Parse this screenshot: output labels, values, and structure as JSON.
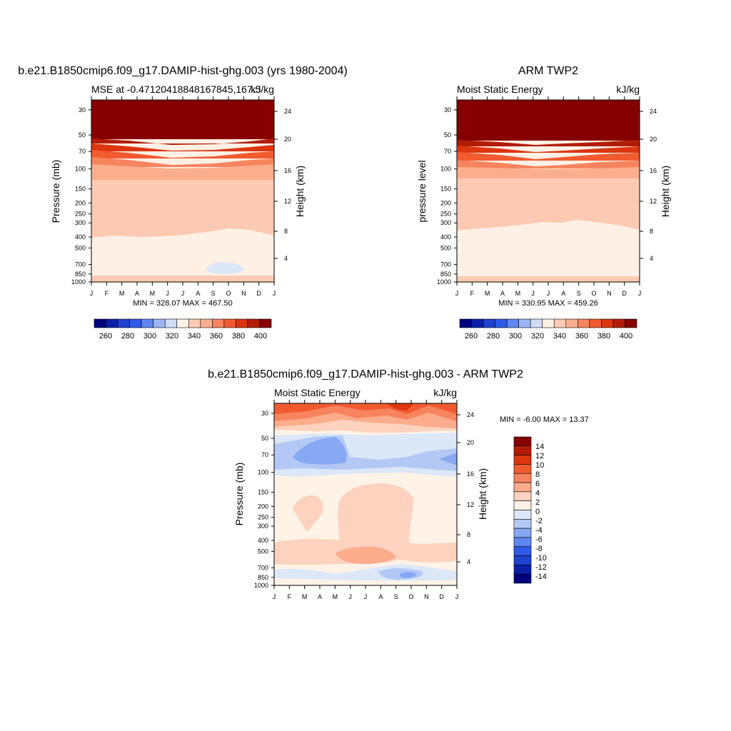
{
  "months": [
    "J",
    "F",
    "M",
    "A",
    "M",
    "J",
    "J",
    "A",
    "S",
    "O",
    "N",
    "D",
    "J"
  ],
  "pressure_ticks": [
    30,
    50,
    70,
    100,
    150,
    200,
    250,
    300,
    400,
    500,
    700,
    850,
    1000
  ],
  "colors": {
    "mse_levels": [
      "#00007f",
      "#0a1fa8",
      "#1f41cf",
      "#2d5ae6",
      "#5e87f0",
      "#9db5f5",
      "#cfdcf7",
      "#fef0e4",
      "#fccab3",
      "#fbae8e",
      "#f7845e",
      "#f25a2f",
      "#dc3510",
      "#b21c06",
      "#870000"
    ],
    "diff_levels": [
      "#00007f",
      "#0a1fa8",
      "#1f41cf",
      "#2d5ae6",
      "#5e87f0",
      "#87a8f3",
      "#b4c8f6",
      "#dce7f7",
      "#fff2e6",
      "#fdd2be",
      "#fbac8a",
      "#f7845e",
      "#f25a2f",
      "#dc3510",
      "#b21c06",
      "#870000"
    ]
  },
  "panel_model": {
    "title": "b.e21.B1850cmip6.f09_g17.DAMIP-hist-ghg.003 (yrs 1980-2004)",
    "left_string": "MSE at -0.47120418848167845,167.5",
    "right_string": "kJ/kg",
    "ylabel": "Pressure (mb)",
    "ylabel_right": "Height (km)",
    "height_ticks": [
      "24",
      "20",
      "16",
      "12",
      "8",
      "4"
    ],
    "stats": "MIN = 328.07 MAX = 467.50",
    "colorbar_labels": [
      "260",
      "280",
      "300",
      "320",
      "340",
      "360",
      "380",
      "400"
    ]
  },
  "panel_obs": {
    "title": "ARM TWP2",
    "left_string": "Moist Static Energy",
    "right_string": "kJ/kg",
    "ylabel": "pressure level",
    "ylabel_right": "Height (km)",
    "height_ticks": [
      "24",
      "20",
      "16",
      "12",
      "8",
      "4"
    ],
    "stats": "MIN = 330.95 MAX = 459.26",
    "colorbar_labels": [
      "260",
      "280",
      "300",
      "320",
      "340",
      "360",
      "380",
      "400"
    ]
  },
  "panel_diff": {
    "title": "b.e21.B1850cmip6.f09_g17.DAMIP-hist-ghg.003 - ARM TWP2",
    "left_string": "Moist Static Energy",
    "right_string": "kJ/kg",
    "ylabel": "Pressure (mb)",
    "ylabel_right": "Height (km)",
    "height_ticks": [
      "24",
      "20",
      "16",
      "12",
      "8",
      "4"
    ],
    "stats": "MIN =  -6.00 MAX =  13.37",
    "colorbar_labels": [
      "14",
      "12",
      "10",
      "8",
      "6",
      "4",
      "2",
      "0",
      "-2",
      "-4",
      "-6",
      "-8",
      "-10",
      "-12",
      "-14"
    ]
  },
  "chart_data": [
    {
      "type": "heatmap",
      "title": "b.e21.B1850cmip6.f09_g17.DAMIP-hist-ghg.003 (yrs 1980-2004)",
      "subtitle": "MSE at -0.47120418848167845,167.5",
      "units": "kJ/kg",
      "xlabel": "",
      "ylabel": "Pressure (mb)",
      "x": [
        "J",
        "F",
        "M",
        "A",
        "M",
        "J",
        "J",
        "A",
        "S",
        "O",
        "N",
        "D",
        "J"
      ],
      "y": [
        30,
        50,
        70,
        100,
        150,
        200,
        250,
        300,
        400,
        500,
        700,
        850,
        1000
      ],
      "min": 328.07,
      "max": 467.5,
      "colorbar": [
        260,
        280,
        300,
        320,
        340,
        360,
        380,
        400
      ],
      "bands_top_down": [
        {
          "p_bottom": 55,
          "value": 400
        },
        {
          "p_bottom": 62,
          "value": 390
        },
        {
          "p_bottom": 72,
          "value": 380
        },
        {
          "p_bottom": 84,
          "value": 370
        },
        {
          "p_bottom": 100,
          "value": 360
        },
        {
          "p_bottom": 128,
          "value": 350
        },
        {
          "p_bottom": 410,
          "value": 345
        },
        {
          "p_bottom": 935,
          "value": 335
        },
        {
          "p_bottom": 1000,
          "value": 345
        }
      ]
    },
    {
      "type": "heatmap",
      "title": "ARM TWP2",
      "subtitle": "Moist Static Energy",
      "units": "kJ/kg",
      "xlabel": "",
      "ylabel": "pressure level",
      "x": [
        "J",
        "F",
        "M",
        "A",
        "M",
        "J",
        "J",
        "A",
        "S",
        "O",
        "N",
        "D",
        "J"
      ],
      "y": [
        30,
        50,
        70,
        100,
        150,
        200,
        250,
        300,
        400,
        500,
        700,
        850,
        1000
      ],
      "min": 330.95,
      "max": 459.26,
      "colorbar": [
        260,
        280,
        300,
        320,
        340,
        360,
        380,
        400
      ],
      "bands_top_down": [
        {
          "p_bottom": 58,
          "value": 400
        },
        {
          "p_bottom": 64,
          "value": 390
        },
        {
          "p_bottom": 74,
          "value": 380
        },
        {
          "p_bottom": 86,
          "value": 370
        },
        {
          "p_bottom": 102,
          "value": 360
        },
        {
          "p_bottom": 130,
          "value": 350
        },
        {
          "p_bottom": 360,
          "value": 345
        },
        {
          "p_bottom": 940,
          "value": 335
        },
        {
          "p_bottom": 1000,
          "value": 345
        }
      ]
    },
    {
      "type": "heatmap",
      "title": "b.e21.B1850cmip6.f09_g17.DAMIP-hist-ghg.003 - ARM TWP2",
      "subtitle": "Moist Static Energy",
      "units": "kJ/kg",
      "xlabel": "",
      "ylabel": "Pressure (mb)",
      "x": [
        "J",
        "F",
        "M",
        "A",
        "M",
        "J",
        "J",
        "A",
        "S",
        "O",
        "N",
        "D",
        "J"
      ],
      "y": [
        30,
        50,
        70,
        100,
        150,
        200,
        250,
        300,
        400,
        500,
        700,
        850,
        1000
      ],
      "min": -6.0,
      "max": 13.37,
      "colorbar": [
        -14,
        -12,
        -10,
        -8,
        -6,
        -4,
        -2,
        0,
        2,
        4,
        6,
        8,
        10,
        12,
        14
      ],
      "bands_top_down": [
        {
          "p_bottom": 34,
          "value": 9
        },
        {
          "p_bottom": 38,
          "value": 7
        },
        {
          "p_bottom": 42,
          "value": 5
        },
        {
          "p_bottom": 46,
          "value": 3
        },
        {
          "p_bottom": 50,
          "value": 1
        },
        {
          "p_bottom": 55,
          "value": -1
        },
        {
          "p_bottom": 88,
          "value": -3
        },
        {
          "p_bottom": 130,
          "value": -1
        },
        {
          "p_bottom": 385,
          "value": 1
        },
        {
          "p_bottom": 780,
          "value": 1
        },
        {
          "p_bottom": 935,
          "value": -1
        },
        {
          "p_bottom": 1000,
          "value": 1
        }
      ]
    }
  ]
}
